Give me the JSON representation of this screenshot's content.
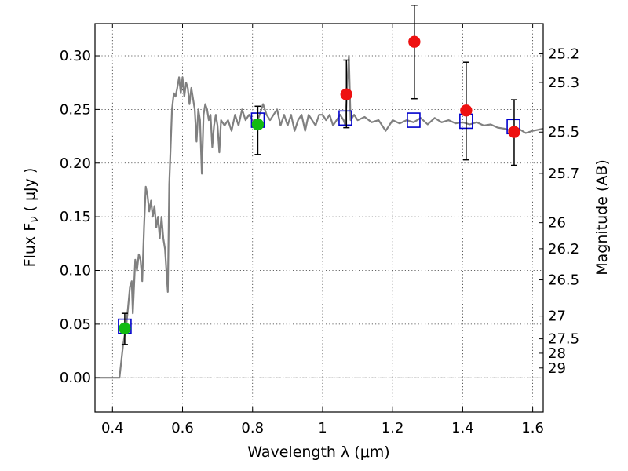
{
  "chart_data": {
    "type": "scatter",
    "xlabel": "Wavelength  λ (μm)",
    "ylabel": "Flux  F",
    "ylabel_sub": "ν",
    "ylabel_unit": "( μJy )",
    "y2label": "Magnitude (AB)",
    "xlim": [
      0.35,
      1.63
    ],
    "ylim": [
      -0.032,
      0.33
    ],
    "grid": true,
    "x_ticks": [
      0.4,
      0.6,
      0.8,
      1.0,
      1.2,
      1.4,
      1.6
    ],
    "x_tick_labels": [
      "0.4",
      "0.6",
      "0.8",
      "1",
      "1.2",
      "1.4",
      "1.6"
    ],
    "y_ticks": [
      0.0,
      0.05,
      0.1,
      0.15,
      0.2,
      0.25,
      0.3
    ],
    "y_tick_labels": [
      "0.00",
      "0.05",
      "0.10",
      "0.15",
      "0.20",
      "0.25",
      "0.30"
    ],
    "mag_ticks": [
      {
        "label": "25.2",
        "flux": 0.3018
      },
      {
        "label": "25.3",
        "flux": 0.2752
      },
      {
        "label": "25.5",
        "flux": 0.2289
      },
      {
        "label": "25.7",
        "flux": 0.1904
      },
      {
        "label": "26",
        "flux": 0.1445
      },
      {
        "label": "26.2",
        "flux": 0.1202
      },
      {
        "label": "26.5",
        "flux": 0.0912
      },
      {
        "label": "27",
        "flux": 0.0575
      },
      {
        "label": "27.5",
        "flux": 0.0363
      },
      {
        "label": "28",
        "flux": 0.0229
      },
      {
        "label": "29",
        "flux": 0.0091
      }
    ],
    "series": [
      {
        "role": "model-spectrum",
        "color": "#808080",
        "points": [
          [
            0.35,
            0.0
          ],
          [
            0.42,
            0.0
          ],
          [
            0.43,
            0.03
          ],
          [
            0.44,
            0.05
          ],
          [
            0.45,
            0.085
          ],
          [
            0.455,
            0.09
          ],
          [
            0.458,
            0.06
          ],
          [
            0.465,
            0.11
          ],
          [
            0.47,
            0.1
          ],
          [
            0.475,
            0.115
          ],
          [
            0.48,
            0.11
          ],
          [
            0.485,
            0.09
          ],
          [
            0.49,
            0.14
          ],
          [
            0.495,
            0.178
          ],
          [
            0.5,
            0.17
          ],
          [
            0.505,
            0.155
          ],
          [
            0.51,
            0.165
          ],
          [
            0.515,
            0.15
          ],
          [
            0.52,
            0.16
          ],
          [
            0.525,
            0.14
          ],
          [
            0.53,
            0.15
          ],
          [
            0.535,
            0.13
          ],
          [
            0.54,
            0.15
          ],
          [
            0.545,
            0.13
          ],
          [
            0.55,
            0.12
          ],
          [
            0.555,
            0.095
          ],
          [
            0.558,
            0.08
          ],
          [
            0.562,
            0.18
          ],
          [
            0.57,
            0.25
          ],
          [
            0.575,
            0.265
          ],
          [
            0.58,
            0.262
          ],
          [
            0.585,
            0.27
          ],
          [
            0.59,
            0.28
          ],
          [
            0.595,
            0.265
          ],
          [
            0.6,
            0.28
          ],
          [
            0.605,
            0.262
          ],
          [
            0.61,
            0.275
          ],
          [
            0.615,
            0.27
          ],
          [
            0.62,
            0.255
          ],
          [
            0.625,
            0.27
          ],
          [
            0.63,
            0.26
          ],
          [
            0.635,
            0.25
          ],
          [
            0.64,
            0.22
          ],
          [
            0.645,
            0.25
          ],
          [
            0.65,
            0.24
          ],
          [
            0.655,
            0.19
          ],
          [
            0.66,
            0.245
          ],
          [
            0.665,
            0.255
          ],
          [
            0.67,
            0.25
          ],
          [
            0.675,
            0.24
          ],
          [
            0.68,
            0.245
          ],
          [
            0.685,
            0.215
          ],
          [
            0.69,
            0.235
          ],
          [
            0.695,
            0.245
          ],
          [
            0.7,
            0.235
          ],
          [
            0.705,
            0.21
          ],
          [
            0.71,
            0.24
          ],
          [
            0.72,
            0.235
          ],
          [
            0.73,
            0.24
          ],
          [
            0.74,
            0.23
          ],
          [
            0.75,
            0.245
          ],
          [
            0.76,
            0.235
          ],
          [
            0.77,
            0.25
          ],
          [
            0.78,
            0.24
          ],
          [
            0.79,
            0.245
          ],
          [
            0.8,
            0.24
          ],
          [
            0.81,
            0.235
          ],
          [
            0.82,
            0.245
          ],
          [
            0.83,
            0.255
          ],
          [
            0.84,
            0.245
          ],
          [
            0.85,
            0.24
          ],
          [
            0.86,
            0.245
          ],
          [
            0.87,
            0.25
          ],
          [
            0.88,
            0.235
          ],
          [
            0.89,
            0.245
          ],
          [
            0.9,
            0.235
          ],
          [
            0.91,
            0.245
          ],
          [
            0.92,
            0.23
          ],
          [
            0.93,
            0.24
          ],
          [
            0.94,
            0.245
          ],
          [
            0.95,
            0.23
          ],
          [
            0.96,
            0.245
          ],
          [
            0.97,
            0.24
          ],
          [
            0.98,
            0.235
          ],
          [
            0.99,
            0.245
          ],
          [
            1.0,
            0.245
          ],
          [
            1.01,
            0.24
          ],
          [
            1.02,
            0.245
          ],
          [
            1.03,
            0.235
          ],
          [
            1.04,
            0.24
          ],
          [
            1.05,
            0.245
          ],
          [
            1.06,
            0.24
          ],
          [
            1.065,
            0.235
          ],
          [
            1.07,
            0.27
          ],
          [
            1.075,
            0.3
          ],
          [
            1.08,
            0.24
          ],
          [
            1.09,
            0.245
          ],
          [
            1.1,
            0.24
          ],
          [
            1.12,
            0.243
          ],
          [
            1.14,
            0.238
          ],
          [
            1.16,
            0.24
          ],
          [
            1.18,
            0.23
          ],
          [
            1.2,
            0.24
          ],
          [
            1.22,
            0.237
          ],
          [
            1.24,
            0.24
          ],
          [
            1.26,
            0.238
          ],
          [
            1.28,
            0.242
          ],
          [
            1.3,
            0.236
          ],
          [
            1.32,
            0.242
          ],
          [
            1.34,
            0.238
          ],
          [
            1.36,
            0.24
          ],
          [
            1.38,
            0.237
          ],
          [
            1.4,
            0.238
          ],
          [
            1.42,
            0.236
          ],
          [
            1.44,
            0.238
          ],
          [
            1.46,
            0.235
          ],
          [
            1.48,
            0.236
          ],
          [
            1.5,
            0.233
          ],
          [
            1.52,
            0.232
          ],
          [
            1.54,
            0.23
          ],
          [
            1.56,
            0.232
          ],
          [
            1.58,
            0.228
          ],
          [
            1.6,
            0.23
          ],
          [
            1.63,
            0.232
          ]
        ]
      },
      {
        "role": "model-bandpass-flux",
        "marker": "open-square",
        "color": "#0000cc",
        "x": [
          0.435,
          0.815,
          1.065,
          1.26,
          1.41,
          1.545
        ],
        "y": [
          0.048,
          0.24,
          0.242,
          0.24,
          0.239,
          0.234
        ]
      },
      {
        "role": "measurement",
        "marker": "circle",
        "color": "#ee1111",
        "x": [
          1.068,
          1.262,
          1.41,
          1.547
        ],
        "y": [
          0.264,
          0.313,
          0.249,
          0.229
        ],
        "yerr_low": [
          0.031,
          0.053,
          0.046,
          0.031
        ],
        "yerr_high": [
          0.032,
          0.034,
          0.045,
          0.03
        ]
      },
      {
        "role": "measurement",
        "marker": "circle",
        "color": "#11bb11",
        "x": [
          0.435,
          0.815
        ],
        "y": [
          0.046,
          0.236
        ],
        "yerr_low": [
          0.015,
          0.028
        ],
        "yerr_high": [
          0.014,
          0.017
        ]
      }
    ]
  }
}
